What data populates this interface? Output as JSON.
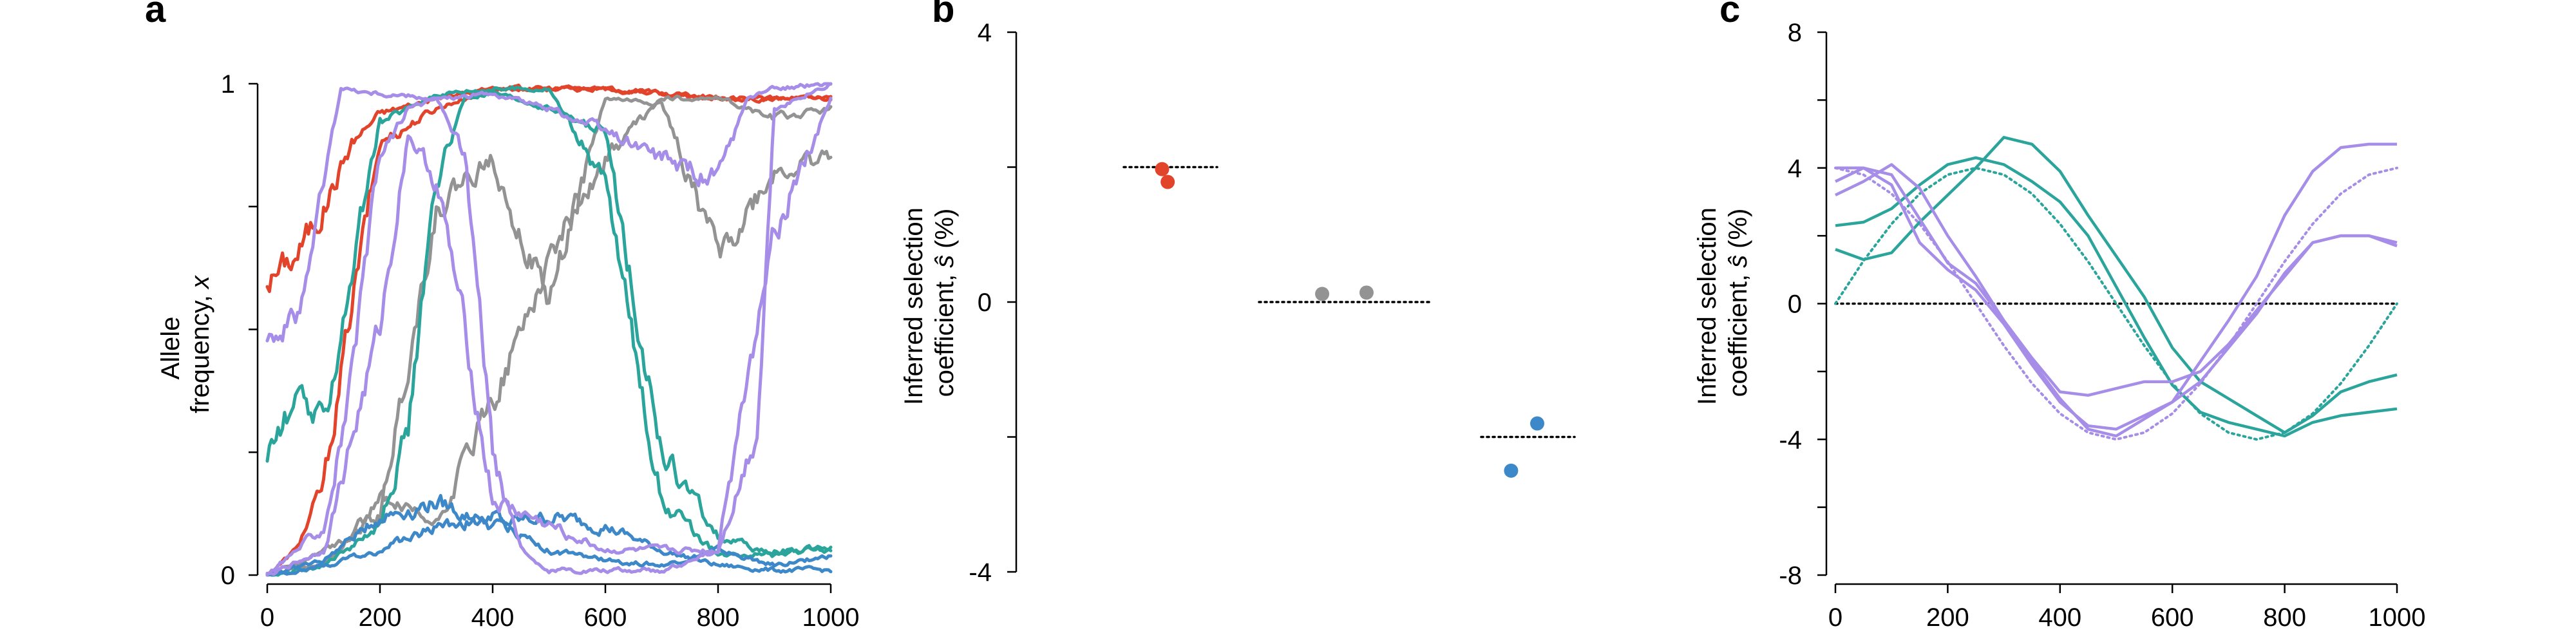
{
  "colors": {
    "red": "#e2432b",
    "gray": "#939393",
    "teal": "#2ba59c",
    "blue": "#3d88c8",
    "purple": "#a68de8"
  },
  "chart_data": [
    {
      "panel": "a",
      "type": "line",
      "ylabel_line1": "Allele",
      "ylabel_line2": "frequency,",
      "ylabel_var": "x",
      "xlim": [
        0,
        1000
      ],
      "ylim": [
        0,
        1
      ],
      "xticks": [
        0,
        200,
        400,
        600,
        800,
        1000
      ],
      "yticks": [
        0,
        1
      ],
      "series": [
        {
          "color": "red",
          "x": [
            0,
            50,
            100,
            150,
            200,
            300,
            400,
            600,
            800,
            1000
          ],
          "y": [
            0.6,
            0.65,
            0.75,
            0.88,
            0.94,
            0.97,
            0.99,
            0.99,
            0.97,
            0.97
          ]
        },
        {
          "color": "red",
          "x": [
            0,
            50,
            100,
            150,
            200,
            300,
            400,
            600,
            800,
            1000
          ],
          "y": [
            0,
            0.05,
            0.18,
            0.55,
            0.88,
            0.95,
            0.99,
            0.99,
            0.97,
            0.97
          ]
        },
        {
          "color": "gray",
          "x": [
            0,
            100,
            200,
            300,
            400,
            500,
            600,
            700,
            800,
            900,
            1000
          ],
          "y": [
            0,
            0.05,
            0.12,
            0.75,
            0.85,
            0.55,
            0.97,
            0.96,
            0.65,
            0.82,
            0.85
          ]
        },
        {
          "color": "gray",
          "x": [
            0,
            100,
            200,
            300,
            400,
            500,
            600,
            700,
            800,
            900,
            1000
          ],
          "y": [
            0,
            0.02,
            0.15,
            0.1,
            0.35,
            0.65,
            0.85,
            0.97,
            0.97,
            0.93,
            0.95
          ]
        },
        {
          "color": "teal",
          "x": [
            0,
            50,
            100,
            150,
            200,
            300,
            400,
            500,
            600,
            700,
            800,
            900,
            1000
          ],
          "y": [
            0.25,
            0.35,
            0.3,
            0.62,
            0.92,
            0.98,
            0.99,
            0.99,
            0.8,
            0.15,
            0.04,
            0.05,
            0.05
          ]
        },
        {
          "color": "teal",
          "x": [
            0,
            100,
            200,
            250,
            300,
            350,
            400,
            500,
            600,
            700,
            800,
            900,
            1000
          ],
          "y": [
            0,
            0.02,
            0.1,
            0.3,
            0.8,
            0.97,
            0.98,
            0.95,
            0.9,
            0.25,
            0.08,
            0.04,
            0.06
          ]
        },
        {
          "color": "blue",
          "x": [
            0,
            100,
            200,
            300,
            400,
            500,
            600,
            700,
            800,
            900,
            1000
          ],
          "y": [
            0,
            0.03,
            0.12,
            0.15,
            0.1,
            0.12,
            0.1,
            0.05,
            0.02,
            0.01,
            0.01
          ]
        },
        {
          "color": "blue",
          "x": [
            0,
            100,
            200,
            300,
            400,
            500,
            600,
            700,
            800,
            900,
            1000
          ],
          "y": [
            0,
            0.02,
            0.05,
            0.1,
            0.12,
            0.05,
            0.03,
            0.02,
            0.05,
            0.02,
            0.04
          ]
        },
        {
          "color": "purple",
          "x": [
            0,
            50,
            100,
            130,
            200,
            300,
            350,
            400,
            450,
            500,
            600,
            700,
            800,
            900,
            1000
          ],
          "y": [
            0.5,
            0.52,
            0.8,
            0.99,
            0.98,
            0.97,
            0.85,
            0.25,
            0.05,
            0.01,
            0.01,
            0.01,
            0.05,
            0.7,
            0.97
          ]
        },
        {
          "color": "purple",
          "x": [
            0,
            100,
            150,
            200,
            250,
            300,
            400,
            500,
            600,
            700,
            800,
            850,
            900,
            1000
          ],
          "y": [
            0,
            0.1,
            0.4,
            0.85,
            0.95,
            0.97,
            0.98,
            0.95,
            0.9,
            0.85,
            0.8,
            0.97,
            0.99,
            1.0
          ]
        },
        {
          "color": "purple",
          "x": [
            0,
            100,
            200,
            250,
            300,
            350,
            400,
            600,
            800,
            870,
            900,
            1000
          ],
          "y": [
            0,
            0.05,
            0.5,
            0.9,
            0.8,
            0.5,
            0.15,
            0.05,
            0.05,
            0.3,
            0.95,
            1.0
          ]
        }
      ]
    },
    {
      "panel": "b",
      "type": "scatter",
      "ylabel_line1": "Inferred selection",
      "ylabel_line2": "coefficient,",
      "ylabel_var": "ŝ",
      "ylabel_unit": "(%)",
      "ylim": [
        -4,
        4
      ],
      "yticks": [
        -4,
        0,
        4
      ],
      "groups": [
        {
          "color": "red",
          "true_value": 2,
          "points": [
            {
              "x": 0.41,
              "y": 1.97
            },
            {
              "x": 0.47,
              "y": 1.78
            }
          ]
        },
        {
          "color": "gray",
          "true_value": 0,
          "points": [
            {
              "x": 0.37,
              "y": 0.12
            },
            {
              "x": 0.63,
              "y": 0.14
            }
          ]
        },
        {
          "color": "blue",
          "true_value": -2,
          "points": [
            {
              "x": 0.32,
              "y": -2.5
            },
            {
              "x": 0.6,
              "y": -1.8
            }
          ]
        }
      ]
    },
    {
      "panel": "c",
      "type": "line",
      "ylabel_line1": "Inferred selection",
      "ylabel_line2": "coefficient,",
      "ylabel_var": "ŝ",
      "ylabel_unit": "(%)",
      "xlim": [
        0,
        1000
      ],
      "ylim": [
        -8,
        8
      ],
      "xticks": [
        0,
        200,
        400,
        600,
        800,
        1000
      ],
      "yticks": [
        -8,
        -4,
        0,
        4,
        8
      ],
      "true_curves": [
        {
          "color": "teal",
          "x": [
            0,
            50,
            100,
            150,
            200,
            250,
            300,
            350,
            400,
            450,
            500,
            550,
            600,
            650,
            700,
            750,
            800,
            850,
            900,
            950,
            1000
          ],
          "y": [
            0,
            1.26,
            2.35,
            3.24,
            3.8,
            4.0,
            3.8,
            3.24,
            2.35,
            1.24,
            0,
            -1.24,
            -2.35,
            -3.24,
            -3.8,
            -4.0,
            -3.8,
            -3.24,
            -2.35,
            -1.24,
            0
          ]
        },
        {
          "color": "purple",
          "x": [
            0,
            50,
            100,
            150,
            200,
            250,
            300,
            350,
            400,
            450,
            500,
            550,
            600,
            650,
            700,
            750,
            800,
            850,
            900,
            950,
            1000
          ],
          "y": [
            4.0,
            3.8,
            3.24,
            2.35,
            1.24,
            0,
            -1.24,
            -2.35,
            -3.24,
            -3.8,
            -4.0,
            -3.8,
            -3.24,
            -2.35,
            -1.24,
            0,
            1.24,
            2.35,
            3.24,
            3.8,
            4.0
          ]
        }
      ],
      "inferred": [
        {
          "color": "teal",
          "x": [
            0,
            50,
            100,
            150,
            200,
            250,
            300,
            350,
            400,
            450,
            500,
            550,
            600,
            650,
            700,
            750,
            800,
            850,
            900,
            950,
            1000
          ],
          "y": [
            2.3,
            2.4,
            2.8,
            3.5,
            4.1,
            4.3,
            4.1,
            3.6,
            3.0,
            2.0,
            0.5,
            -1.0,
            -2.4,
            -3.2,
            -3.5,
            -3.7,
            -3.9,
            -3.5,
            -3.3,
            -3.2,
            -3.1
          ]
        },
        {
          "color": "teal",
          "x": [
            0,
            50,
            100,
            150,
            200,
            250,
            300,
            350,
            400,
            450,
            500,
            550,
            600,
            650,
            700,
            750,
            800,
            850,
            900,
            950,
            1000
          ],
          "y": [
            1.6,
            1.3,
            1.5,
            2.4,
            3.2,
            4.0,
            4.9,
            4.7,
            3.9,
            2.6,
            1.4,
            0.2,
            -1.3,
            -2.3,
            -2.8,
            -3.3,
            -3.8,
            -3.3,
            -2.6,
            -2.3,
            -2.1
          ]
        },
        {
          "color": "purple",
          "x": [
            0,
            50,
            100,
            150,
            200,
            250,
            300,
            350,
            400,
            450,
            500,
            550,
            600,
            650,
            700,
            750,
            800,
            850,
            900,
            950,
            1000
          ],
          "y": [
            4.0,
            4.0,
            3.8,
            2.5,
            1.2,
            0.6,
            -0.5,
            -1.7,
            -2.8,
            -3.7,
            -3.9,
            -3.4,
            -2.9,
            -1.7,
            -0.5,
            0.8,
            2.6,
            3.9,
            4.6,
            4.7,
            4.7
          ]
        },
        {
          "color": "purple",
          "x": [
            0,
            50,
            100,
            150,
            200,
            250,
            300,
            350,
            400,
            450,
            500,
            550,
            600,
            650,
            700,
            750,
            800,
            850,
            900,
            950,
            1000
          ],
          "y": [
            3.2,
            3.6,
            4.1,
            3.4,
            2.0,
            0.8,
            -0.5,
            -1.6,
            -2.6,
            -2.7,
            -2.5,
            -2.3,
            -2.3,
            -2.0,
            -1.2,
            -0.2,
            0.8,
            1.8,
            2.0,
            2.0,
            1.7
          ]
        },
        {
          "color": "purple",
          "x": [
            0,
            50,
            100,
            150,
            200,
            250,
            300,
            350,
            400,
            450,
            500,
            550,
            600,
            650,
            700,
            750,
            800,
            850,
            900,
            950,
            1000
          ],
          "y": [
            3.6,
            4.0,
            3.5,
            1.8,
            1.0,
            0.4,
            -0.6,
            -1.8,
            -2.9,
            -3.6,
            -3.7,
            -3.3,
            -2.9,
            -2.3,
            -1.3,
            -0.3,
            0.9,
            1.8,
            2.0,
            2.0,
            1.8
          ]
        }
      ]
    }
  ]
}
